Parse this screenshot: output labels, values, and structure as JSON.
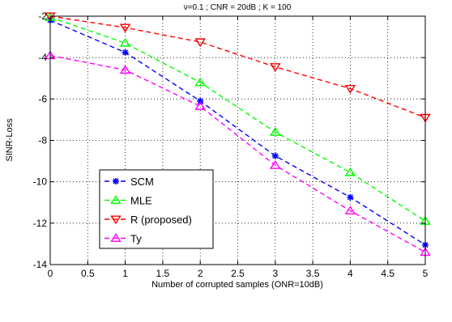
{
  "chart_data": {
    "type": "line",
    "title": "ν=0.1 ; CNR = 20dB ; K = 100",
    "xlabel": "Number of corrupted samples (ONR=10dB)",
    "ylabel": "SINR-Loss",
    "xlim": [
      0,
      5
    ],
    "ylim": [
      -14,
      -2
    ],
    "xticks": [
      "0",
      "0.5",
      "1",
      "1.5",
      "2",
      "2.5",
      "3",
      "3.5",
      "4",
      "4.5",
      "5"
    ],
    "yticks": [
      "-2",
      "-4",
      "-6",
      "-8",
      "-10",
      "-12",
      "-14"
    ],
    "grid": true,
    "legend_position": "lower-left",
    "x": [
      0,
      1,
      2,
      3,
      4,
      5
    ],
    "series": [
      {
        "name": "SCM",
        "color": "#0000ff",
        "marker": "star",
        "values": [
          -2.2,
          -3.75,
          -6.1,
          -8.75,
          -10.75,
          -13.05
        ]
      },
      {
        "name": "MLE",
        "color": "#00ff00",
        "marker": "triangle-up",
        "values": [
          -2.05,
          -3.3,
          -5.2,
          -7.6,
          -9.55,
          -11.9
        ]
      },
      {
        "name": "R (proposed)",
        "color": "#ff0000",
        "marker": "triangle-down",
        "values": [
          -2.0,
          -2.55,
          -3.25,
          -4.45,
          -5.5,
          -6.9
        ]
      },
      {
        "name": "Ty",
        "color": "#ff00ff",
        "marker": "triangle-up",
        "values": [
          -3.9,
          -4.6,
          -6.35,
          -9.2,
          -11.4,
          -13.4
        ]
      }
    ]
  }
}
